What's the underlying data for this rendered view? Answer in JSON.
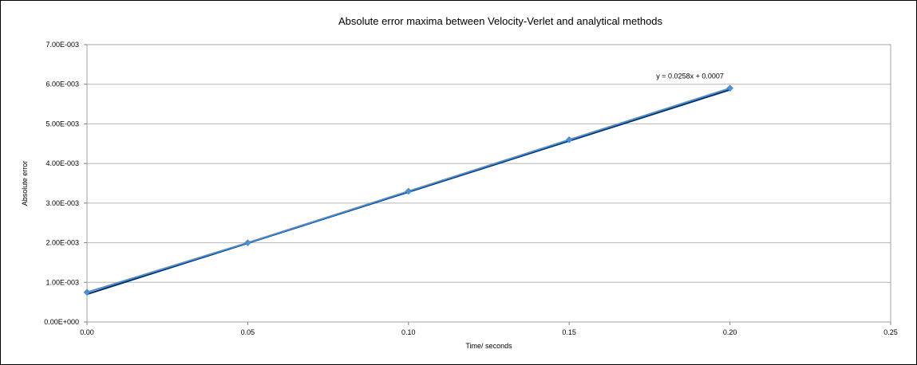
{
  "chart_data": {
    "type": "scatter",
    "title": "Absolute error maxima between Velocity-Verlet and analytical methods",
    "xlabel": "Time/ seconds",
    "ylabel": "Absolute error",
    "xlim": [
      0,
      0.25
    ],
    "ylim": [
      0,
      0.007
    ],
    "x_ticks": [
      "0.00",
      "0.05",
      "0.10",
      "0.15",
      "0.20",
      "0.25"
    ],
    "y_ticks": [
      "0.00E+000",
      "1.00E-003",
      "2.00E-003",
      "3.00E-003",
      "4.00E-003",
      "5.00E-003",
      "6.00E-003",
      "7.00E-003"
    ],
    "grid": "horizontal",
    "legend": "none",
    "series": [
      {
        "x": [
          0.0,
          0.05,
          0.1,
          0.15,
          0.2
        ],
        "y": [
          0.00075,
          0.002,
          0.0033,
          0.0046,
          0.0059
        ],
        "color": "#4a90d9",
        "marker": "diamond"
      }
    ],
    "trendline": {
      "type": "linear",
      "slope": 0.0258,
      "intercept": 0.0007,
      "equation": "y = 0.0258x + 0.0007",
      "color": "#0d2a4e"
    }
  }
}
